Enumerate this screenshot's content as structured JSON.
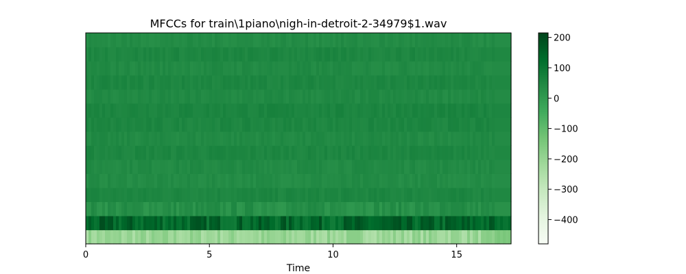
{
  "chart_data": {
    "type": "heatmap",
    "title": "MFCCs for train\\1piano\\nigh-in-detroit-2-34979$1.wav",
    "xlabel": "Time",
    "ylabel": "",
    "xlim": [
      0,
      17.2
    ],
    "x_ticks": [
      0,
      5,
      10,
      15
    ],
    "x_tick_labels": [
      "0",
      "5",
      "10",
      "15"
    ],
    "n_coefficients": 15,
    "coefficient_order": "bottom-to-top",
    "coefficient_mean_values": [
      -210,
      140,
      30,
      55,
      40,
      45,
      55,
      45,
      55,
      60,
      45,
      55,
      45,
      55,
      40
    ],
    "colormap": "Greens",
    "colorbar": {
      "range": [
        -480,
        215
      ],
      "ticks": [
        200,
        100,
        0,
        -100,
        -200,
        -300,
        -400
      ],
      "tick_labels": [
        "200",
        "100",
        "0",
        "−100",
        "−200",
        "−300",
        "−400"
      ]
    },
    "colors": {
      "cmap_stops": [
        "#f7fcf5",
        "#e5f5e0",
        "#c7e9c0",
        "#a1d99b",
        "#74c476",
        "#41ab5d",
        "#238b45",
        "#006d2c",
        "#00441b"
      ]
    }
  }
}
